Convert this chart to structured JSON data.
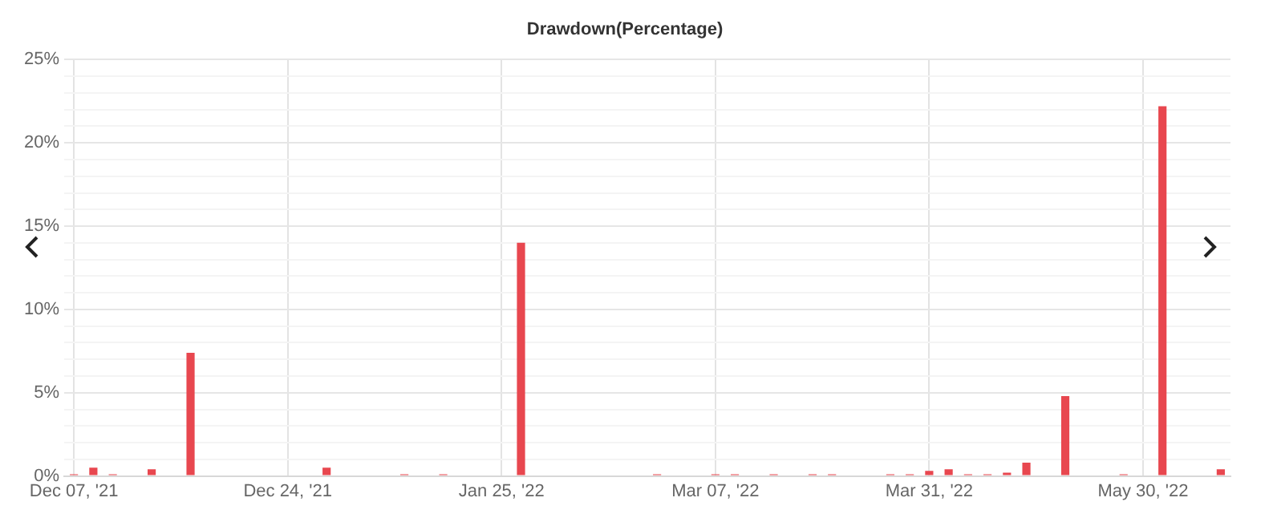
{
  "chart_data": {
    "type": "bar",
    "title": "Drawdown(Percentage)",
    "categories": [
      "Dec 07, '21",
      null,
      null,
      null,
      null,
      null,
      null,
      null,
      null,
      null,
      null,
      "Dec 24, '21",
      null,
      null,
      null,
      null,
      null,
      null,
      null,
      null,
      null,
      null,
      "Jan 25, '22",
      null,
      null,
      null,
      null,
      null,
      null,
      null,
      null,
      null,
      null,
      "Mar 07, '22",
      null,
      null,
      null,
      null,
      null,
      null,
      null,
      null,
      null,
      null,
      "Mar 31, '22",
      null,
      null,
      null,
      null,
      null,
      null,
      null,
      null,
      null,
      null,
      "May 30, '22",
      null,
      null,
      null,
      null
    ],
    "values": [
      0.1,
      0.5,
      0.1,
      0,
      0.4,
      0,
      7.4,
      0,
      0,
      0,
      0,
      0,
      0,
      0.5,
      0,
      0,
      0,
      0.1,
      0,
      0.1,
      0,
      0,
      0,
      14,
      0,
      0,
      0,
      0,
      0,
      0,
      0.1,
      0,
      0,
      0.1,
      0.1,
      0,
      0.1,
      0,
      0.1,
      0.1,
      0,
      0,
      0.1,
      0.1,
      0.3,
      0.4,
      0.1,
      0.1,
      0.2,
      0.8,
      0,
      4.8,
      0,
      0,
      0.1,
      0,
      22.2,
      0,
      0,
      0.4
    ],
    "color": "#e8474f",
    "ylim": [
      0,
      25
    ],
    "yticks": [
      {
        "value": 0,
        "label": "0%"
      },
      {
        "value": 1,
        "label": null
      },
      {
        "value": 2,
        "label": null
      },
      {
        "value": 3,
        "label": null
      },
      {
        "value": 4,
        "label": null
      },
      {
        "value": 5,
        "label": "5%"
      },
      {
        "value": 6,
        "label": null
      },
      {
        "value": 7,
        "label": null
      },
      {
        "value": 8,
        "label": null
      },
      {
        "value": 9,
        "label": null
      },
      {
        "value": 10,
        "label": "10%"
      },
      {
        "value": 11,
        "label": null
      },
      {
        "value": 12,
        "label": null
      },
      {
        "value": 13,
        "label": null
      },
      {
        "value": 14,
        "label": null
      },
      {
        "value": 15,
        "label": "15%"
      },
      {
        "value": 16,
        "label": null
      },
      {
        "value": 17,
        "label": null
      },
      {
        "value": 18,
        "label": null
      },
      {
        "value": 19,
        "label": null
      },
      {
        "value": 20,
        "label": "20%"
      },
      {
        "value": 21,
        "label": null
      },
      {
        "value": 22,
        "label": null
      },
      {
        "value": 23,
        "label": null
      },
      {
        "value": 24,
        "label": null
      },
      {
        "value": 25,
        "label": "25%"
      }
    ],
    "grid": true,
    "legend": false
  }
}
